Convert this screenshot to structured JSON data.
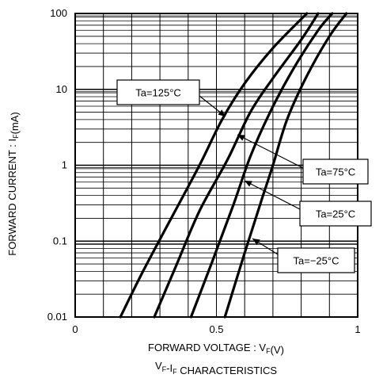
{
  "chart_data": {
    "type": "line",
    "title": "",
    "subtitle": "V F-I F CHARACTERISTICS",
    "xlabel": "FORWARD VOLTAGE : VF(V)",
    "ylabel": "FORWARD CURRENT : IF(mA)",
    "xlim": [
      0,
      1.0
    ],
    "ylim": [
      0.01,
      100
    ],
    "y_scale": "log",
    "grid": true,
    "x_ticks": [
      {
        "value": 0,
        "label": "0"
      },
      {
        "value": 0.5,
        "label": "0.5"
      },
      {
        "value": 1.0,
        "label": "1"
      }
    ],
    "y_ticks": [
      {
        "value": 0.01,
        "label": "0.01"
      },
      {
        "value": 0.1,
        "label": "0.1"
      },
      {
        "value": 1,
        "label": "1"
      },
      {
        "value": 10,
        "label": "10"
      },
      {
        "value": 100,
        "label": "100"
      }
    ],
    "series": [
      {
        "name": "Ta=125°C",
        "color": "#000000",
        "points": [
          [
            0.16,
            0.01
          ],
          [
            0.24,
            0.04
          ],
          [
            0.34,
            0.2
          ],
          [
            0.44,
            1
          ],
          [
            0.52,
            4
          ],
          [
            0.6,
            12
          ],
          [
            0.7,
            35
          ],
          [
            0.82,
            100
          ]
        ]
      },
      {
        "name": "Ta=75°C",
        "color": "#000000",
        "points": [
          [
            0.28,
            0.01
          ],
          [
            0.36,
            0.05
          ],
          [
            0.44,
            0.25
          ],
          [
            0.54,
            1.2
          ],
          [
            0.62,
            5
          ],
          [
            0.7,
            14
          ],
          [
            0.8,
            45
          ],
          [
            0.86,
            100
          ]
        ]
      },
      {
        "name": "Ta=25°C",
        "color": "#000000",
        "points": [
          [
            0.41,
            0.01
          ],
          [
            0.49,
            0.06
          ],
          [
            0.56,
            0.3
          ],
          [
            0.62,
            1.3
          ],
          [
            0.69,
            5
          ],
          [
            0.77,
            18
          ],
          [
            0.86,
            60
          ],
          [
            0.91,
            100
          ]
        ]
      },
      {
        "name": "Ta=−25°C",
        "color": "#000000",
        "points": [
          [
            0.53,
            0.01
          ],
          [
            0.6,
            0.07
          ],
          [
            0.66,
            0.35
          ],
          [
            0.7,
            1
          ],
          [
            0.75,
            4
          ],
          [
            0.82,
            15
          ],
          [
            0.9,
            50
          ],
          [
            0.96,
            100
          ]
        ]
      }
    ],
    "annotations": [
      {
        "label": "Ta=125°C",
        "series": 0
      },
      {
        "label": "Ta=75°C",
        "series": 1
      },
      {
        "label": "Ta=25°C",
        "series": 2
      },
      {
        "label": "Ta=−25°C",
        "series": 3
      }
    ]
  }
}
